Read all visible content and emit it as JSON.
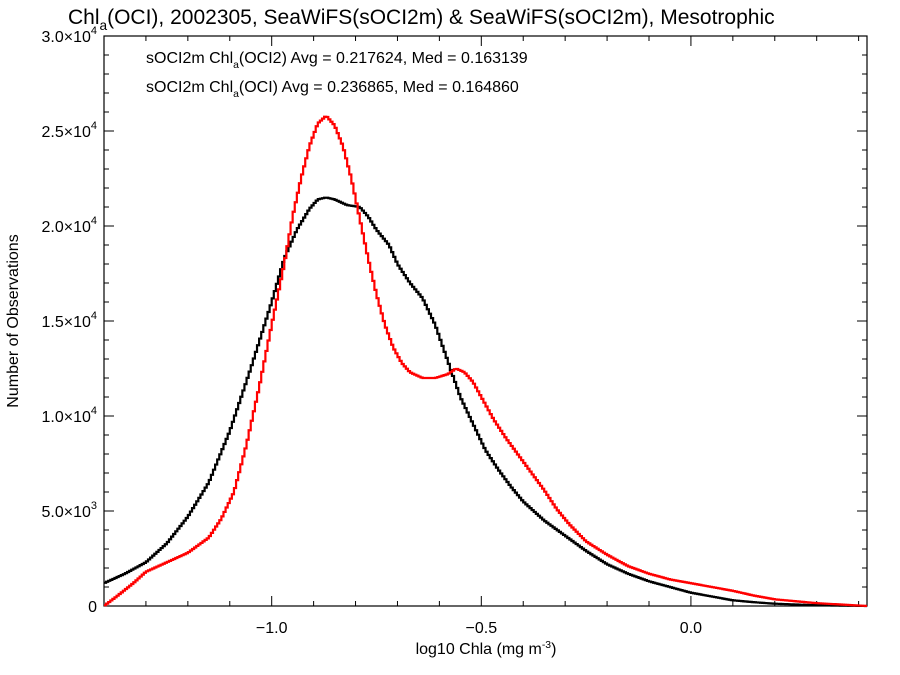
{
  "chart_data": {
    "type": "line",
    "title": {
      "pre": "Chl",
      "sub": "a",
      "post": "(OCI), 2002305, SeaWiFS(sOCI2m) & SeaWiFS(sOCI2m), Mesotrophic"
    },
    "xlabel": {
      "pre": "log10 Chla (mg m",
      "sup": "-3",
      "post": ")"
    },
    "ylabel": "Number of Observations",
    "xlim": [
      -1.4,
      0.42
    ],
    "ylim": [
      0,
      30000
    ],
    "xticks": [
      {
        "value": -1.0,
        "label": "−1.0"
      },
      {
        "value": -0.5,
        "label": "−0.5"
      },
      {
        "value": 0.0,
        "label": "0.0"
      }
    ],
    "yticks": [
      {
        "value": 0,
        "mant": "0",
        "exp": ""
      },
      {
        "value": 5000,
        "mant": "5.0×10",
        "exp": "3"
      },
      {
        "value": 10000,
        "mant": "1.0×10",
        "exp": "4"
      },
      {
        "value": 15000,
        "mant": "1.5×10",
        "exp": "4"
      },
      {
        "value": 20000,
        "mant": "2.0×10",
        "exp": "4"
      },
      {
        "value": 25000,
        "mant": "2.5×10",
        "exp": "4"
      },
      {
        "value": 30000,
        "mant": "3.0×10",
        "exp": "4"
      }
    ],
    "grid": false,
    "legend_position": "top-left",
    "series": [
      {
        "name": {
          "pre": "sOCI2m Chl",
          "sub": "a",
          "post": "(OCI2) Avg = 0.217624, Med = 0.163139"
        },
        "color": "#000000",
        "points": [
          [
            -1.4,
            1200
          ],
          [
            -1.35,
            1700
          ],
          [
            -1.3,
            2300
          ],
          [
            -1.25,
            3300
          ],
          [
            -1.2,
            4700
          ],
          [
            -1.15,
            6500
          ],
          [
            -1.1,
            9200
          ],
          [
            -1.05,
            12500
          ],
          [
            -1.0,
            16000
          ],
          [
            -0.97,
            18300
          ],
          [
            -0.94,
            19800
          ],
          [
            -0.91,
            20900
          ],
          [
            -0.89,
            21400
          ],
          [
            -0.87,
            21500
          ],
          [
            -0.85,
            21400
          ],
          [
            -0.82,
            21100
          ],
          [
            -0.79,
            21000
          ],
          [
            -0.77,
            20500
          ],
          [
            -0.75,
            19800
          ],
          [
            -0.72,
            19000
          ],
          [
            -0.7,
            18000
          ],
          [
            -0.67,
            17000
          ],
          [
            -0.64,
            16200
          ],
          [
            -0.61,
            14800
          ],
          [
            -0.58,
            12900
          ],
          [
            -0.55,
            11000
          ],
          [
            -0.52,
            9600
          ],
          [
            -0.49,
            8200
          ],
          [
            -0.46,
            7200
          ],
          [
            -0.43,
            6300
          ],
          [
            -0.4,
            5500
          ],
          [
            -0.35,
            4500
          ],
          [
            -0.3,
            3700
          ],
          [
            -0.25,
            2900
          ],
          [
            -0.2,
            2200
          ],
          [
            -0.15,
            1700
          ],
          [
            -0.1,
            1300
          ],
          [
            -0.05,
            1000
          ],
          [
            0.0,
            700
          ],
          [
            0.05,
            500
          ],
          [
            0.1,
            300
          ],
          [
            0.15,
            200
          ],
          [
            0.2,
            120
          ],
          [
            0.3,
            40
          ],
          [
            0.42,
            0
          ]
        ]
      },
      {
        "name": {
          "pre": "sOCI2m Chl",
          "sub": "a",
          "post": "(OCI) Avg = 0.236865, Med = 0.164860"
        },
        "color": "#ff0000",
        "points": [
          [
            -1.4,
            0
          ],
          [
            -1.37,
            500
          ],
          [
            -1.33,
            1200
          ],
          [
            -1.3,
            1800
          ],
          [
            -1.25,
            2300
          ],
          [
            -1.2,
            2800
          ],
          [
            -1.15,
            3600
          ],
          [
            -1.12,
            4600
          ],
          [
            -1.09,
            6000
          ],
          [
            -1.06,
            8500
          ],
          [
            -1.03,
            11500
          ],
          [
            -1.0,
            14800
          ],
          [
            -0.97,
            18000
          ],
          [
            -0.95,
            20500
          ],
          [
            -0.93,
            22500
          ],
          [
            -0.91,
            24200
          ],
          [
            -0.89,
            25400
          ],
          [
            -0.87,
            25800
          ],
          [
            -0.85,
            25300
          ],
          [
            -0.83,
            24200
          ],
          [
            -0.81,
            22500
          ],
          [
            -0.79,
            20400
          ],
          [
            -0.77,
            18300
          ],
          [
            -0.75,
            16400
          ],
          [
            -0.73,
            14800
          ],
          [
            -0.71,
            13600
          ],
          [
            -0.69,
            12800
          ],
          [
            -0.67,
            12300
          ],
          [
            -0.64,
            12000
          ],
          [
            -0.61,
            12000
          ],
          [
            -0.58,
            12200
          ],
          [
            -0.56,
            12500
          ],
          [
            -0.54,
            12300
          ],
          [
            -0.52,
            11800
          ],
          [
            -0.5,
            11000
          ],
          [
            -0.47,
            9800
          ],
          [
            -0.44,
            8800
          ],
          [
            -0.41,
            7900
          ],
          [
            -0.38,
            7000
          ],
          [
            -0.35,
            6100
          ],
          [
            -0.32,
            5100
          ],
          [
            -0.29,
            4300
          ],
          [
            -0.25,
            3400
          ],
          [
            -0.2,
            2700
          ],
          [
            -0.15,
            2100
          ],
          [
            -0.1,
            1700
          ],
          [
            -0.05,
            1400
          ],
          [
            0.0,
            1200
          ],
          [
            0.05,
            1000
          ],
          [
            0.1,
            800
          ],
          [
            0.15,
            550
          ],
          [
            0.2,
            350
          ],
          [
            0.3,
            150
          ],
          [
            0.42,
            0
          ]
        ]
      }
    ]
  }
}
